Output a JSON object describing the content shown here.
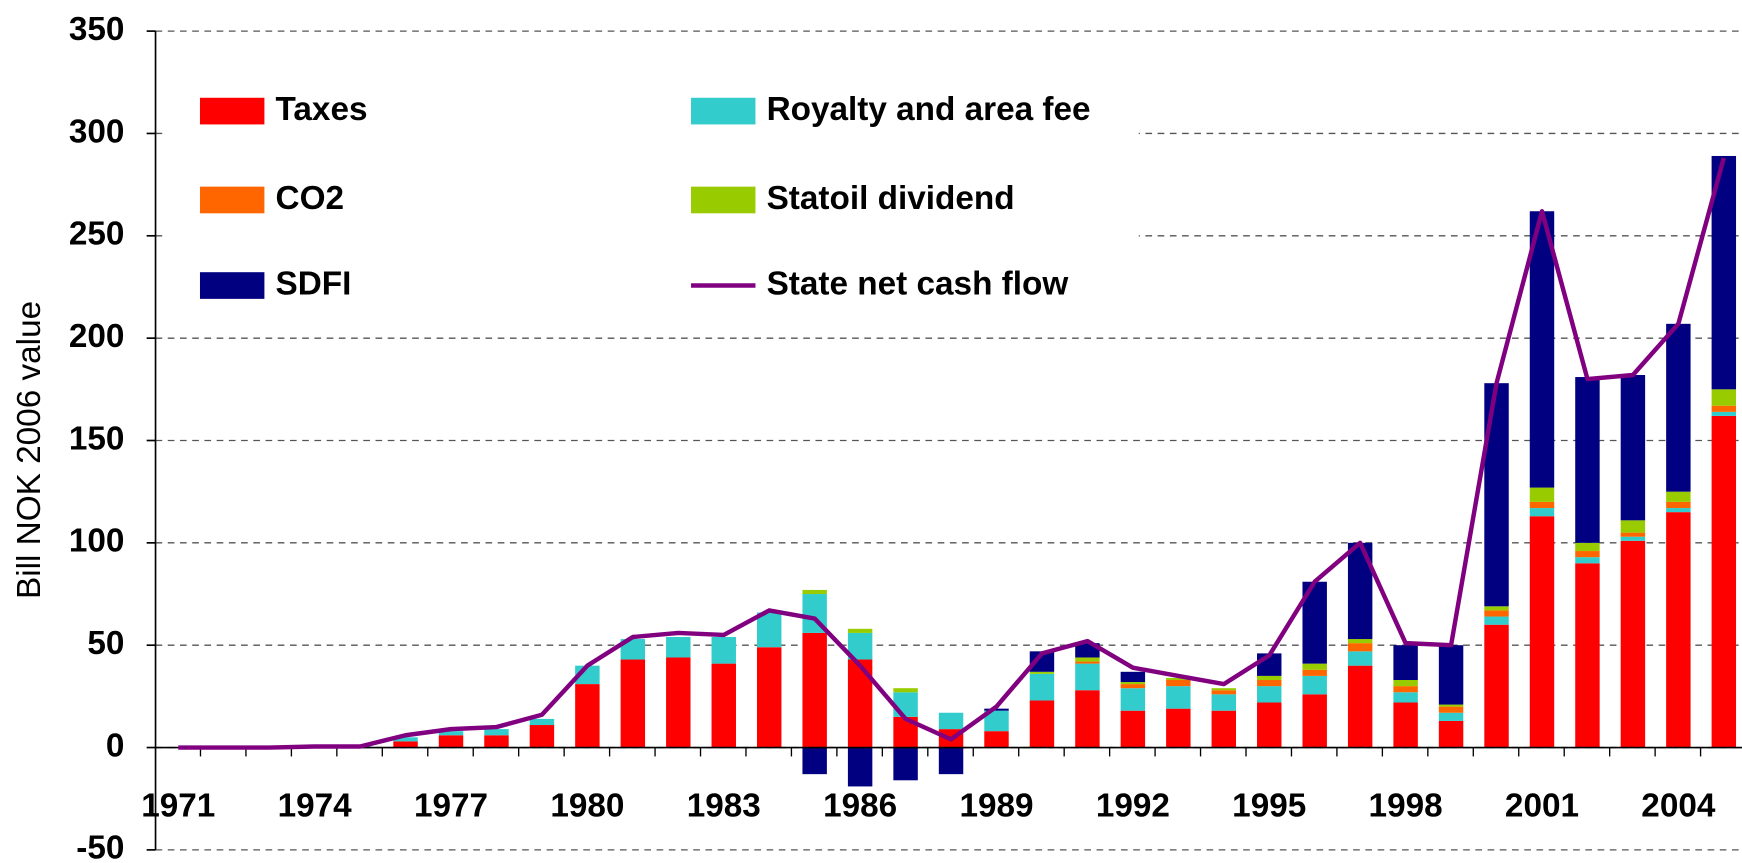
{
  "chart_data": {
    "type": "stacked-bar-line",
    "y_label": "Bill NOK 2006 value",
    "x": [
      1971,
      1972,
      1973,
      1974,
      1975,
      1976,
      1977,
      1978,
      1979,
      1980,
      1981,
      1982,
      1983,
      1984,
      1985,
      1986,
      1987,
      1988,
      1989,
      1990,
      1991,
      1992,
      1993,
      1994,
      1995,
      1996,
      1997,
      1998,
      1999,
      2000,
      2001,
      2002,
      2003,
      2004,
      2005
    ],
    "xlim": [
      1970.5,
      2005.4
    ],
    "xticks": [
      1971,
      1974,
      1977,
      1980,
      1983,
      1986,
      1989,
      1992,
      1995,
      1998,
      2001,
      2004
    ],
    "ylim": [
      -50,
      350
    ],
    "yticks": [
      -50,
      0,
      50,
      100,
      150,
      200,
      250,
      300,
      350
    ],
    "grid": true,
    "series": [
      {
        "name": "Taxes",
        "color": "#ff0000",
        "kind": "bar",
        "values": [
          0,
          0,
          0,
          0,
          0,
          3,
          6,
          6,
          11,
          31,
          43,
          44,
          41,
          49,
          56,
          43,
          15,
          9,
          8,
          23,
          28,
          18,
          19,
          18,
          22,
          26,
          40,
          22,
          13,
          60,
          113,
          90,
          101,
          115,
          162
        ]
      },
      {
        "name": "Royalty and area fee",
        "color": "#33cccc",
        "kind": "bar",
        "values": [
          0,
          0,
          0,
          0.5,
          0.5,
          2,
          2,
          3,
          3,
          9,
          10,
          10,
          13,
          17,
          19,
          13,
          12,
          8,
          10,
          13,
          13,
          11,
          11,
          8,
          8,
          9,
          7,
          5,
          4,
          4,
          4,
          3,
          2,
          2,
          2
        ]
      },
      {
        "name": "CO2",
        "color": "#ff6600",
        "kind": "bar",
        "values": [
          0,
          0,
          0,
          0,
          0,
          0,
          0,
          0,
          0,
          0,
          0,
          0,
          0,
          0,
          0,
          0,
          0,
          0,
          0,
          0,
          1,
          2,
          3,
          2,
          3,
          3,
          4,
          3,
          3,
          3,
          3,
          3,
          2,
          3,
          3
        ]
      },
      {
        "name": "Statoil dividend",
        "color": "#99cc00",
        "kind": "bar",
        "values": [
          0,
          0,
          0,
          0,
          0,
          0,
          0,
          0,
          0,
          0,
          0,
          0,
          0,
          0,
          2,
          2,
          2,
          0,
          0,
          1,
          2,
          1,
          1,
          1,
          2,
          3,
          2,
          3,
          1,
          2,
          7,
          4,
          6,
          5,
          8
        ]
      },
      {
        "name": "SDFI",
        "color": "#000080",
        "kind": "bar",
        "values": [
          0,
          0,
          0,
          0,
          0,
          0,
          0,
          0,
          0,
          0,
          0,
          0,
          0,
          0,
          -13,
          -19,
          -16,
          -13,
          1,
          10,
          7,
          5,
          0,
          0,
          11,
          40,
          47,
          17,
          29,
          109,
          135,
          81,
          71,
          82,
          114
        ]
      },
      {
        "name": "State net cash flow",
        "color": "#800080",
        "kind": "line",
        "values": [
          0,
          0,
          0,
          0.5,
          0.5,
          6,
          9,
          10,
          16,
          40,
          54,
          56,
          55,
          67,
          63,
          40,
          14,
          4,
          20,
          46,
          52,
          39,
          35,
          31,
          45,
          81,
          100,
          51,
          50,
          178,
          262,
          180,
          182,
          207,
          288
        ]
      }
    ]
  }
}
